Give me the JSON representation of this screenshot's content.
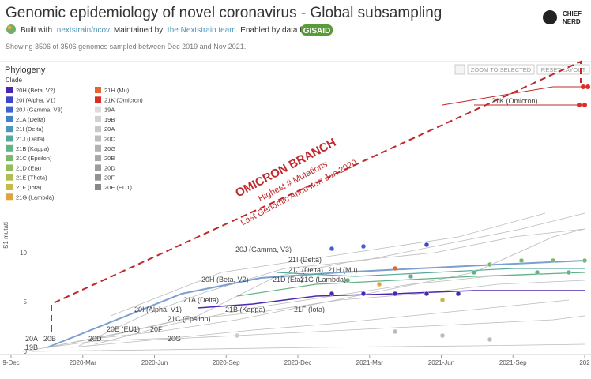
{
  "header": {
    "title": "Genomic epidemiology of novel coronavirus - Global subsampling",
    "built_with": "Built with",
    "link1": "nextstrain/ncov",
    "maintained": ". Maintained by",
    "link2": "the Nextstrain team",
    "enabled": ". Enabled by data from",
    "gisaid": "GISAID",
    "showing": "Showing 3506 of 3506 genomes sampled between Dec 2019 and Nov 2021."
  },
  "logo": {
    "line1": "CHIEF",
    "line2": "NERD"
  },
  "panel": {
    "title": "Phylogeny",
    "buttons": [
      "ZOOM TO SELECTED",
      "RESET LAYOUT"
    ],
    "legend_title": "Clade",
    "legend": [
      {
        "label": "20H (Beta, V2)",
        "color": "#4a27b0"
      },
      {
        "label": "20I (Alpha, V1)",
        "color": "#3d45c8"
      },
      {
        "label": "20J (Gamma, V3)",
        "color": "#3e62cf"
      },
      {
        "label": "21A (Delta)",
        "color": "#4280c8"
      },
      {
        "label": "21I (Delta)",
        "color": "#4c98b8"
      },
      {
        "label": "21J (Delta)",
        "color": "#55a89c"
      },
      {
        "label": "21B (Kappa)",
        "color": "#62b384"
      },
      {
        "label": "21C (Epsilon)",
        "color": "#78b96e"
      },
      {
        "label": "21D (Eta)",
        "color": "#92bd5c"
      },
      {
        "label": "21E (Theta)",
        "color": "#afbd51"
      },
      {
        "label": "21F (Iota)",
        "color": "#cbb845"
      },
      {
        "label": "21G (Lambda)",
        "color": "#dfa43c"
      },
      {
        "label": "21H (Mu)",
        "color": "#e3662f"
      },
      {
        "label": "21K (Omicron)",
        "color": "#db2d26"
      },
      {
        "label": "19A",
        "color": "#dcdcdc"
      },
      {
        "label": "19B",
        "color": "#d2d2d2"
      },
      {
        "label": "20A",
        "color": "#c8c8c8"
      },
      {
        "label": "20C",
        "color": "#bdbdbd"
      },
      {
        "label": "20G",
        "color": "#b2b2b2"
      },
      {
        "label": "20B",
        "color": "#a8a8a8"
      },
      {
        "label": "20D",
        "color": "#9d9d9d"
      },
      {
        "label": "20F",
        "color": "#929292"
      },
      {
        "label": "20E (EU1)",
        "color": "#888888"
      }
    ]
  },
  "axes": {
    "y_label": "S1 mutati",
    "y_ticks": [
      "0",
      "5",
      "10"
    ],
    "x_ticks": [
      "9-Dec",
      "2020-Mar",
      "2020-Jun",
      "2020-Sep",
      "2020-Dec",
      "2021-Mar",
      "2021-Jun",
      "2021-Sep",
      "202"
    ]
  },
  "tree_labels": [
    "20A",
    "20B",
    "19B",
    "20D",
    "20E (EU1)",
    "20F",
    "20G",
    "20I (Alpha, V1)",
    "21C (Epsilon)",
    "21A (Delta)",
    "21B (Kappa)",
    "20H (Beta, V2)",
    "20J (Gamma, V3)",
    "21I (Delta)",
    "21J (Delta)",
    "21H (Mu)",
    "21D (Eta)",
    "21G (Lambda)",
    "21F (Iota)",
    "21K (Omicron)"
  ],
  "annotation": {
    "title": "OMICRON BRANCH",
    "line1": "Highest # Mutations",
    "line2": "Last Genomic Ancestor: Jan 2020"
  }
}
